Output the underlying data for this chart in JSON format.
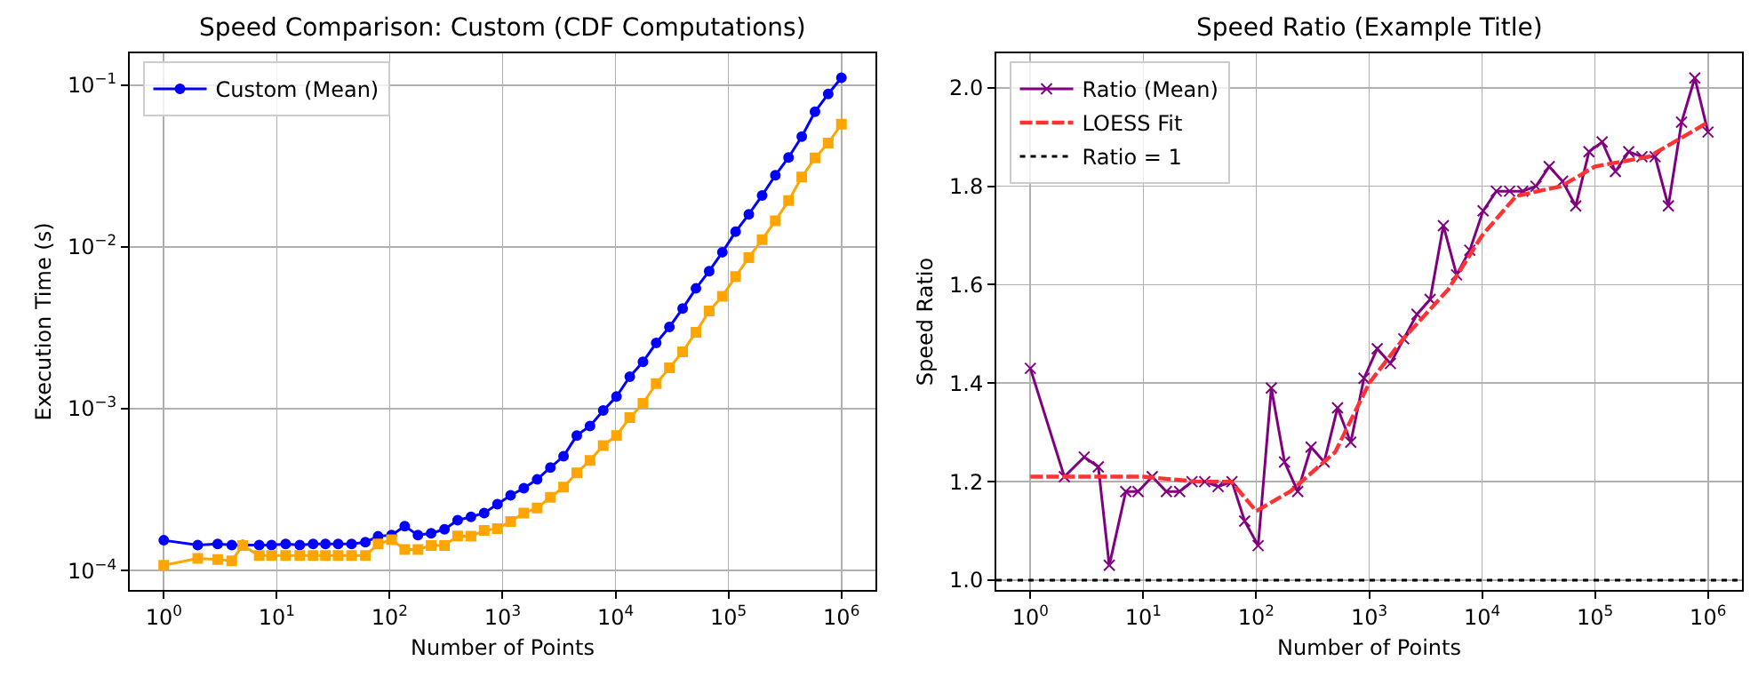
{
  "chart_data": [
    {
      "type": "line",
      "title": "Speed Comparison: Custom (CDF Computations)",
      "xlabel": "Number of Points",
      "ylabel": "Execution Time (s)",
      "x": [
        1,
        2,
        3,
        4,
        5,
        7,
        9,
        12,
        16,
        21,
        27,
        35,
        46,
        61,
        79,
        104,
        136,
        178,
        233,
        306,
        400,
        525,
        687,
        900,
        1178,
        1542,
        2023,
        2649,
        3467,
        4539,
        5943,
        7780,
        10200,
        13370,
        17500,
        22910,
        29990,
        39270,
        51520,
        67450,
        88310,
        115600,
        151400,
        198600,
        260000,
        340400,
        445700,
        583400,
        763800,
        1000000
      ],
      "series": [
        {
          "name": "Custom (Mean)",
          "color": "#0000ff",
          "marker": "circle",
          "values": [
            0.000154,
            0.000144,
            0.000146,
            0.000144,
            0.000144,
            0.000144,
            0.000144,
            0.000146,
            0.000144,
            0.000146,
            0.000146,
            0.000146,
            0.000146,
            0.00015,
            0.000163,
            0.000166,
            0.000188,
            0.000166,
            0.00017,
            0.00018,
            0.000205,
            0.000215,
            0.000227,
            0.000257,
            0.000292,
            0.000323,
            0.000366,
            0.000434,
            0.000509,
            0.000684,
            0.000783,
            0.000975,
            0.00119,
            0.00158,
            0.00195,
            0.00255,
            0.0032,
            0.00416,
            0.00554,
            0.00708,
            0.00927,
            0.0124,
            0.0159,
            0.0208,
            0.0277,
            0.0357,
            0.048,
            0.0684,
            0.0881,
            0.111
          ]
        },
        {
          "color": "#ffa500",
          "marker": "square",
          "values": [
            0.000108,
            0.000119,
            0.000117,
            0.000115,
            0.000143,
            0.000124,
            0.000124,
            0.000124,
            0.000124,
            0.000124,
            0.000124,
            0.000124,
            0.000124,
            0.000124,
            0.000146,
            0.000155,
            0.000135,
            0.000135,
            0.000143,
            0.000143,
            0.000164,
            0.000163,
            0.000177,
            0.000182,
            0.000201,
            0.000227,
            0.000244,
            0.000284,
            0.000328,
            0.000402,
            0.00048,
            0.000593,
            0.000684,
            0.000881,
            0.00108,
            0.00143,
            0.00179,
            0.00225,
            0.00297,
            0.00402,
            0.00496,
            0.00656,
            0.00859,
            0.0111,
            0.0145,
            0.0193,
            0.027,
            0.0354,
            0.0438,
            0.0573
          ]
        }
      ],
      "log": "xy",
      "grid": true,
      "legend": "top left",
      "xlim": [
        0.5,
        2000000
      ],
      "ylim": [
        7.6e-05,
        0.157
      ],
      "xticks": [
        {
          "value": 1,
          "label": "10$^{0}$"
        },
        {
          "value": 10,
          "label": "10$^{1}$"
        },
        {
          "value": 100,
          "label": "10$^{2}$"
        },
        {
          "value": 1000,
          "label": "10$^{3}$"
        },
        {
          "value": 10000,
          "label": "10$^{4}$"
        },
        {
          "value": 100000,
          "label": "10$^{5}$"
        },
        {
          "value": 1000000,
          "label": "10$^{6}$"
        }
      ],
      "yticks": [
        {
          "value": 0.0001,
          "label": "10$^{−4}$"
        },
        {
          "value": 0.001,
          "label": "10$^{−3}$"
        },
        {
          "value": 0.01,
          "label": "10$^{−2}$"
        },
        {
          "value": 0.1,
          "label": "10$^{−1}$"
        }
      ]
    },
    {
      "type": "line",
      "title": "Speed Ratio (Example Title)",
      "xlabel": "Number of Points",
      "ylabel": "Speed Ratio",
      "x": [
        1,
        2,
        3,
        4,
        5,
        7,
        9,
        12,
        16,
        21,
        27,
        35,
        46,
        61,
        79,
        104,
        136,
        178,
        233,
        306,
        400,
        525,
        687,
        900,
        1178,
        1542,
        2023,
        2649,
        3467,
        4539,
        5943,
        7780,
        10200,
        13370,
        17500,
        22910,
        29990,
        39270,
        51520,
        67450,
        88310,
        115600,
        151400,
        198600,
        260000,
        340400,
        445700,
        583400,
        763800,
        1000000
      ],
      "series": [
        {
          "name": "Ratio (Mean)",
          "color": "#800080",
          "marker": "cross",
          "values": [
            1.43,
            1.21,
            1.25,
            1.23,
            1.03,
            1.18,
            1.18,
            1.21,
            1.18,
            1.18,
            1.2,
            1.2,
            1.19,
            1.2,
            1.12,
            1.07,
            1.39,
            1.24,
            1.18,
            1.27,
            1.24,
            1.35,
            1.28,
            1.41,
            1.47,
            1.44,
            1.49,
            1.54,
            1.57,
            1.72,
            1.62,
            1.67,
            1.75,
            1.79,
            1.79,
            1.79,
            1.8,
            1.84,
            1.81,
            1.76,
            1.87,
            1.89,
            1.83,
            1.87,
            1.86,
            1.86,
            1.76,
            1.93,
            2.02,
            1.91
          ]
        },
        {
          "name": "LOESS Fit",
          "type": "line",
          "color": "#ff3333",
          "line_style": "dashed",
          "marker": "none",
          "x": [
            1,
            10,
            30,
            60,
            100,
            200,
            500,
            1000,
            2000,
            5000,
            10000,
            20000,
            50000,
            100000,
            300000,
            600000,
            1000000
          ],
          "values": [
            1.21,
            1.21,
            1.2,
            1.2,
            1.14,
            1.18,
            1.26,
            1.4,
            1.49,
            1.59,
            1.7,
            1.78,
            1.8,
            1.84,
            1.86,
            1.9,
            1.93
          ]
        }
      ],
      "ref_lines": [
        {
          "axis": "y",
          "value": 1,
          "label": "Ratio = 1",
          "color": "#000000",
          "line_style": "dotted"
        }
      ],
      "log": "x",
      "grid": true,
      "legend": "top left",
      "xlim": [
        0.5,
        2000000
      ],
      "ylim": [
        0.98,
        2.07
      ],
      "xticks": [
        {
          "value": 1,
          "label": "10$^{0}$"
        },
        {
          "value": 10,
          "label": "10$^{1}$"
        },
        {
          "value": 100,
          "label": "10$^{2}$"
        },
        {
          "value": 1000,
          "label": "10$^{3}$"
        },
        {
          "value": 10000,
          "label": "10$^{4}$"
        },
        {
          "value": 100000,
          "label": "10$^{5}$"
        },
        {
          "value": 1000000,
          "label": "10$^{6}$"
        }
      ],
      "yticks": [
        {
          "value": 1,
          "label": "1.0"
        },
        1.2,
        1.4,
        1.6,
        1.8,
        {
          "value": 2,
          "label": "2.0"
        }
      ]
    }
  ]
}
